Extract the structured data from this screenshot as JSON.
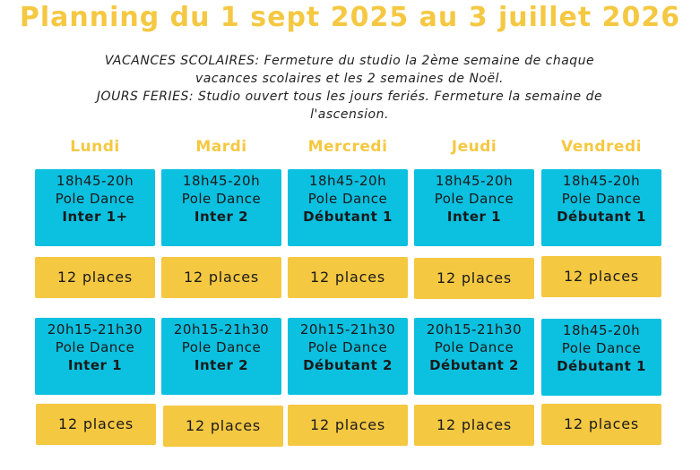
{
  "title": "Planning du 1 sept 2025 au 3 juillet 2026",
  "notes": {
    "line1": "VACANCES SCOLAIRES: Fermeture du studio la 2ème semaine de chaque",
    "line2": "vacances scolaires et les 2 semaines de Noël.",
    "line3": "JOURS FERIES:  Studio ouvert tous les jours feriés. Fermeture la semaine de",
    "line4": "l'ascension."
  },
  "days": [
    "Lundi",
    "Mardi",
    "Mercredi",
    "Jeudi",
    "Vendredi"
  ],
  "row1": [
    {
      "time": "18h45-20h",
      "course": "Pole Dance",
      "level": "Inter 1+",
      "places": "12 places"
    },
    {
      "time": "18h45-20h",
      "course": "Pole Dance",
      "level": "Inter 2",
      "places": "12 places"
    },
    {
      "time": "18h45-20h",
      "course": "Pole Dance",
      "level": "Débutant 1",
      "places": "12 places"
    },
    {
      "time": "18h45-20h",
      "course": "Pole Dance",
      "level": "Inter 1",
      "places": "12 places"
    },
    {
      "time": "18h45-20h",
      "course": "Pole Dance",
      "level": "Débutant 1",
      "places": "12 places"
    }
  ],
  "row2": [
    {
      "time": "20h15-21h30",
      "course": "Pole Dance",
      "level": "Inter 1",
      "places": "12 places"
    },
    {
      "time": "20h15-21h30",
      "course": "Pole Dance",
      "level": "Inter 2",
      "places": "12 places"
    },
    {
      "time": "20h15-21h30",
      "course": "Pole Dance",
      "level": "Débutant 2",
      "places": "12 places"
    },
    {
      "time": "20h15-21h30",
      "course": "Pole Dance",
      "level": "Débutant 2",
      "places": "12 places"
    },
    {
      "time": "18h45-20h",
      "course": "Pole Dance",
      "level": "Débutant 1",
      "places": "12 places"
    }
  ],
  "colors": {
    "accent_yellow": "#f5c842",
    "course_blue": "#0cc0e0"
  }
}
